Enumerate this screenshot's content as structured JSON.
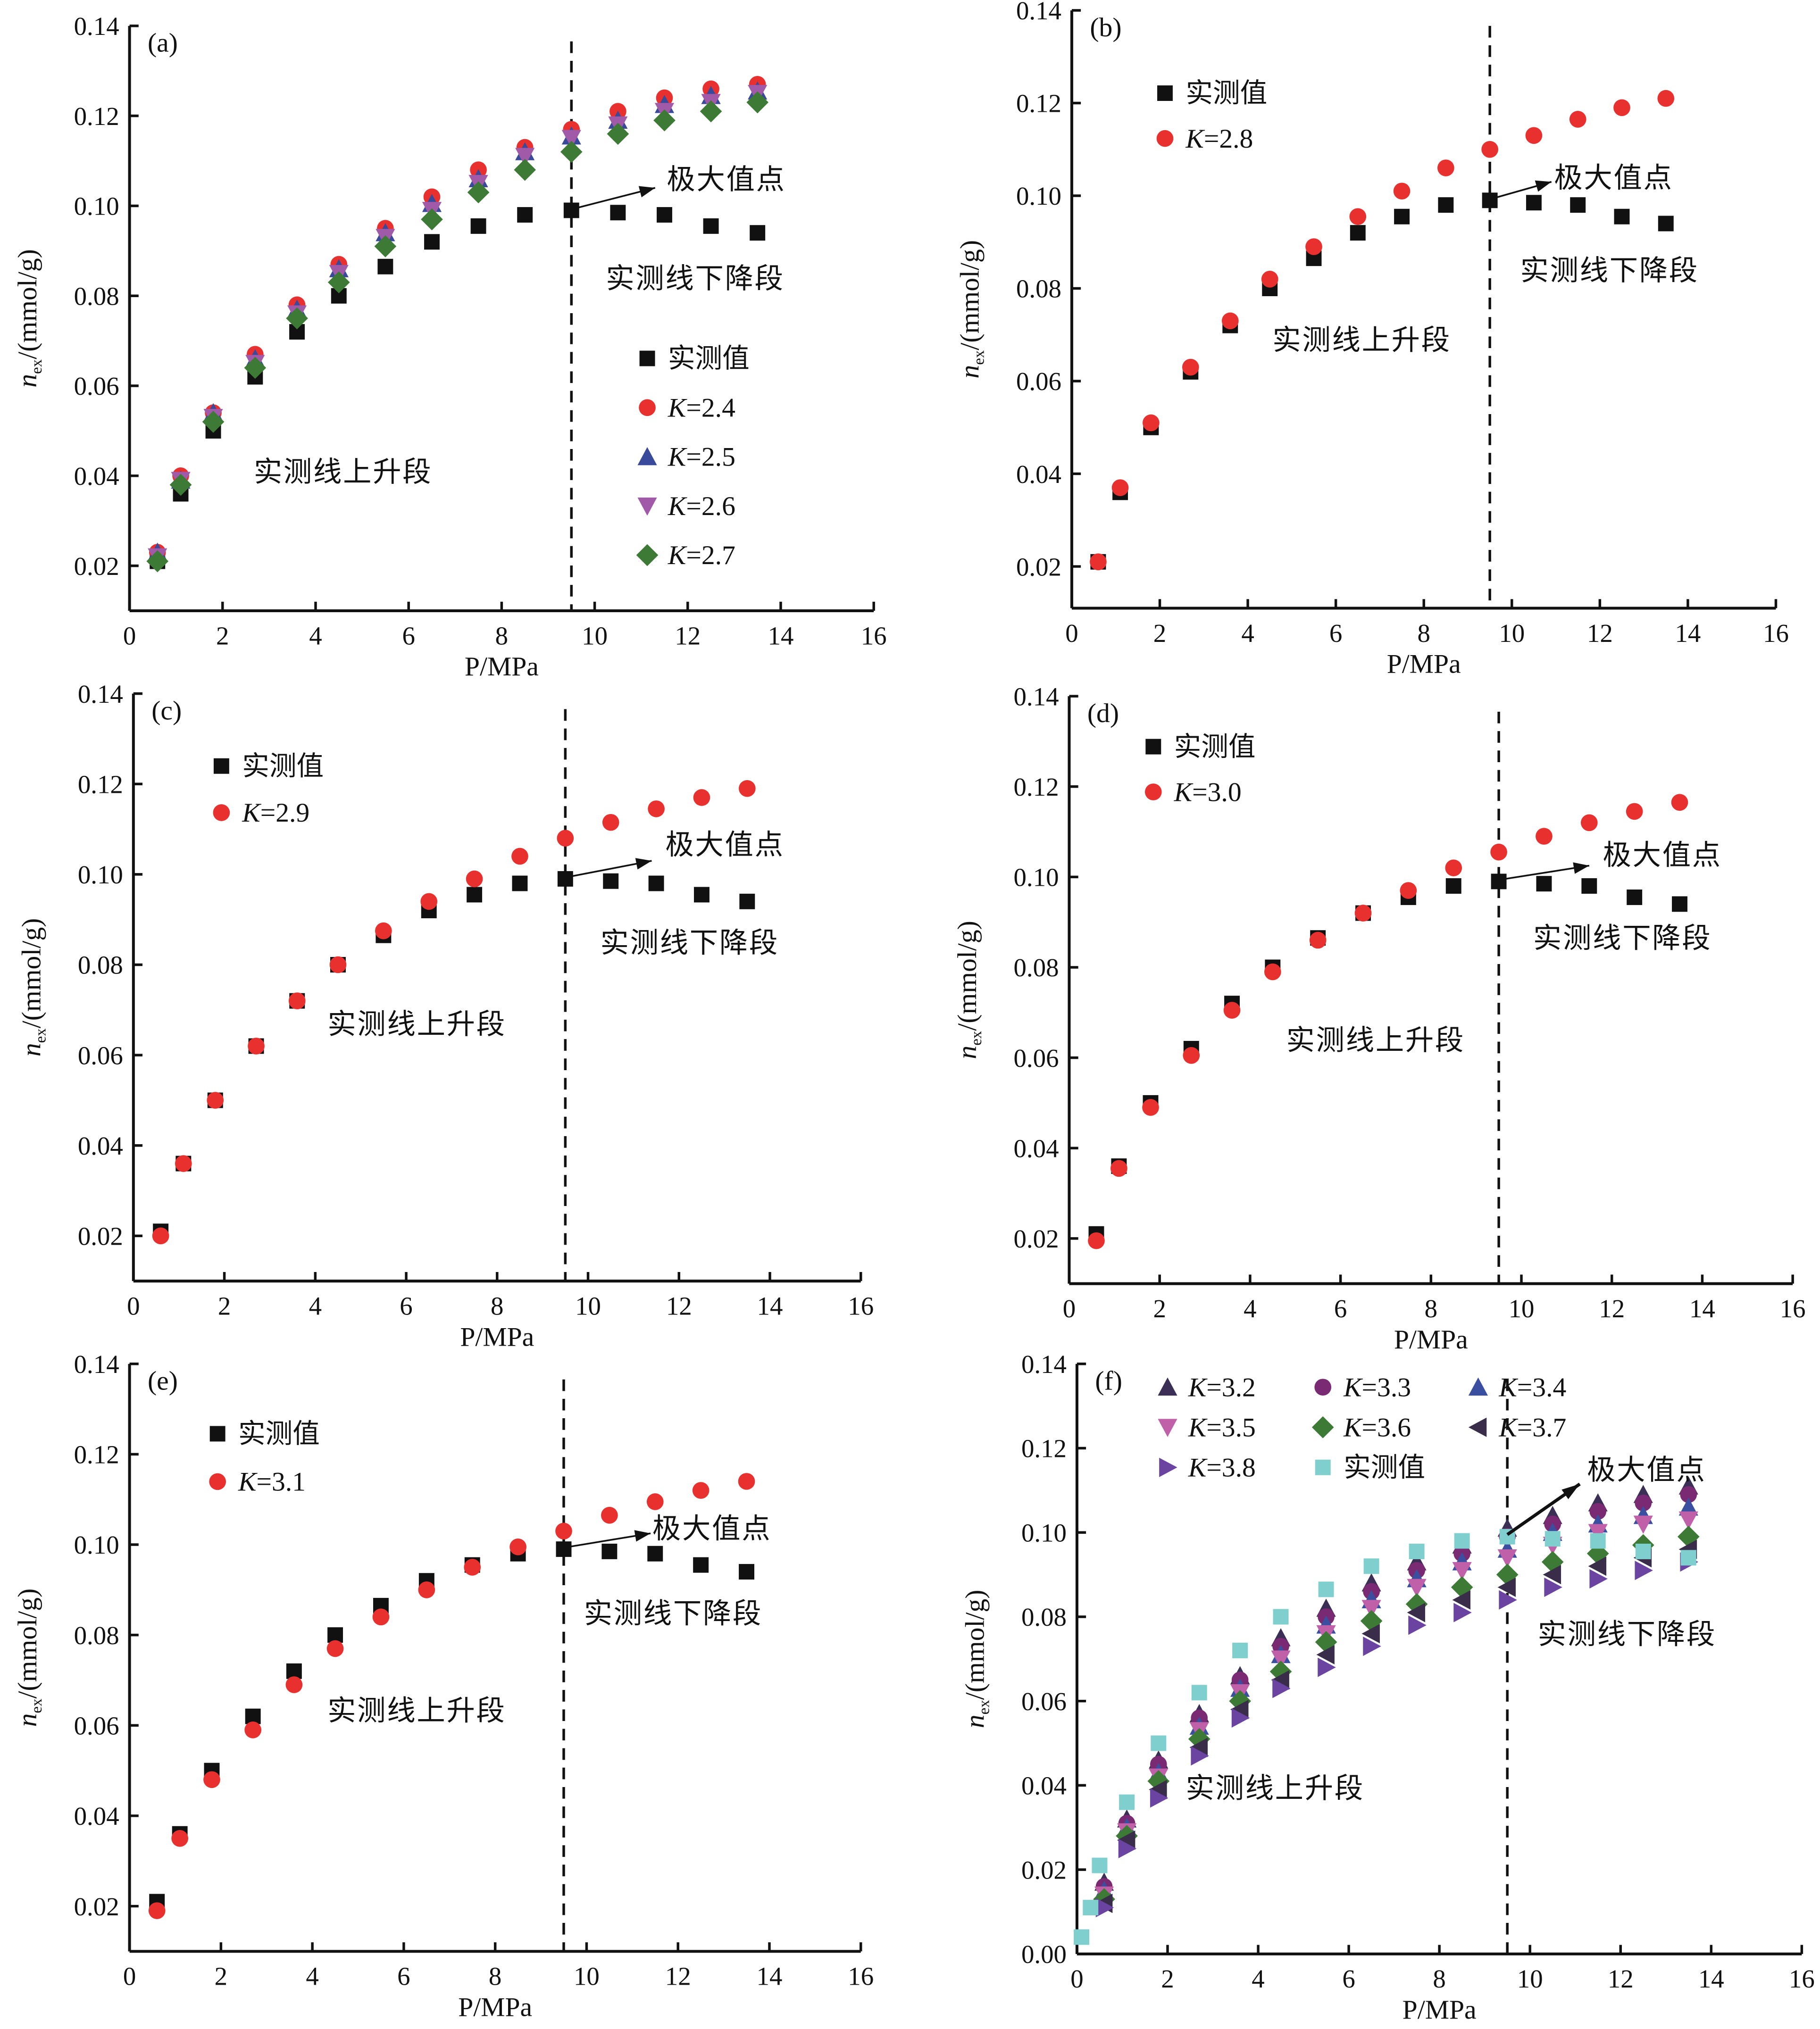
{
  "chart_data": [
    {
      "type": "scatter",
      "panel_label": "(a)",
      "xlabel": "P/MPa",
      "ylabel": "n_ex/(mmol/g)",
      "xlim": [
        0,
        16
      ],
      "ylim": [
        0.01,
        0.14
      ],
      "xticks": [
        0,
        2,
        4,
        6,
        8,
        10,
        12,
        14,
        16
      ],
      "yticks": [
        0.02,
        0.04,
        0.06,
        0.08,
        0.1,
        0.12,
        0.14
      ],
      "vline_x": 9.5,
      "legend_placement": "right",
      "x": [
        0.6,
        1.1,
        1.8,
        2.7,
        3.6,
        4.5,
        5.5,
        6.5,
        7.5,
        8.5,
        9.5,
        10.5,
        11.5,
        12.5,
        13.5
      ],
      "series": [
        {
          "name": "实测值",
          "marker": "square",
          "color": "#111111",
          "values": [
            0.021,
            0.036,
            0.05,
            0.062,
            0.072,
            0.08,
            0.0865,
            0.092,
            0.0955,
            0.098,
            0.099,
            0.0985,
            0.098,
            0.0955,
            0.094
          ]
        },
        {
          "name": "K=2.4",
          "marker": "circle",
          "color": "#e8312f",
          "values": [
            0.023,
            0.04,
            0.054,
            0.067,
            0.078,
            0.087,
            0.095,
            0.102,
            0.108,
            0.113,
            0.117,
            0.121,
            0.124,
            0.126,
            0.127
          ]
        },
        {
          "name": "K=2.5",
          "marker": "triangle-up",
          "color": "#3a4a9a",
          "values": [
            0.023,
            0.039,
            0.054,
            0.066,
            0.077,
            0.086,
            0.094,
            0.1005,
            0.106,
            0.112,
            0.1155,
            0.119,
            0.1225,
            0.1245,
            0.1255
          ]
        },
        {
          "name": "K=2.6",
          "marker": "triangle-down",
          "color": "#a05aa8",
          "values": [
            0.022,
            0.039,
            0.053,
            0.065,
            0.076,
            0.085,
            0.093,
            0.099,
            0.105,
            0.111,
            0.115,
            0.118,
            0.121,
            0.123,
            0.125
          ]
        },
        {
          "name": "K=2.7",
          "marker": "diamond",
          "color": "#3d7a35",
          "values": [
            0.021,
            0.038,
            0.052,
            0.064,
            0.075,
            0.083,
            0.091,
            0.097,
            0.103,
            0.108,
            0.112,
            0.116,
            0.119,
            0.121,
            0.123
          ]
        }
      ],
      "annotations": [
        {
          "text": "极大值点",
          "x": 11.55,
          "y": 0.106,
          "arrow_from": [
            9.6,
            0.0995
          ],
          "arrow_to": [
            11.3,
            0.104
          ]
        },
        {
          "text": "实测线下降段",
          "x": 10.24,
          "y": 0.084
        },
        {
          "text": "实测线上升段",
          "x": 2.67,
          "y": 0.041
        }
      ]
    },
    {
      "type": "scatter",
      "panel_label": "(b)",
      "xlabel": "P/MPa",
      "ylabel": "n_ex/(mmol/g)",
      "xlim": [
        0,
        16
      ],
      "ylim": [
        0.011,
        0.14
      ],
      "xticks": [
        0,
        2,
        4,
        6,
        8,
        10,
        12,
        14,
        16
      ],
      "yticks": [
        0.02,
        0.04,
        0.06,
        0.08,
        0.1,
        0.12,
        0.14
      ],
      "vline_x": 9.5,
      "legend_placement": "top-left",
      "x": [
        0.6,
        1.1,
        1.8,
        2.7,
        3.6,
        4.5,
        5.5,
        6.5,
        7.5,
        8.5,
        9.5,
        10.5,
        11.5,
        12.5,
        13.5
      ],
      "series": [
        {
          "name": "实测值",
          "marker": "square",
          "color": "#111111",
          "values": [
            0.021,
            0.036,
            0.05,
            0.062,
            0.072,
            0.08,
            0.0865,
            0.092,
            0.0955,
            0.098,
            0.099,
            0.0985,
            0.098,
            0.0955,
            0.094
          ]
        },
        {
          "name": "K=2.8",
          "marker": "circle",
          "color": "#e8312f",
          "values": [
            0.021,
            0.037,
            0.051,
            0.063,
            0.073,
            0.082,
            0.089,
            0.0955,
            0.101,
            0.106,
            0.11,
            0.113,
            0.1165,
            0.119,
            0.121
          ]
        }
      ],
      "annotations": [
        {
          "text": "极大值点",
          "x": 10.96,
          "y": 0.104,
          "arrow_from": [
            9.6,
            0.0995
          ],
          "arrow_to": [
            10.9,
            0.103
          ]
        },
        {
          "text": "实测线下降段",
          "x": 10.19,
          "y": 0.084
        },
        {
          "text": "实测线上升段",
          "x": 4.56,
          "y": 0.069
        }
      ]
    },
    {
      "type": "scatter",
      "panel_label": "(c)",
      "xlabel": "P/MPa",
      "ylabel": "n_ex/(mmol/g)",
      "xlim": [
        0,
        16
      ],
      "ylim": [
        0.01,
        0.14
      ],
      "xticks": [
        0,
        2,
        4,
        6,
        8,
        10,
        12,
        14,
        16
      ],
      "yticks": [
        0.02,
        0.04,
        0.06,
        0.08,
        0.1,
        0.12,
        0.14
      ],
      "vline_x": 9.5,
      "legend_placement": "top-left",
      "x": [
        0.6,
        1.1,
        1.8,
        2.7,
        3.6,
        4.5,
        5.5,
        6.5,
        7.5,
        8.5,
        9.5,
        10.5,
        11.5,
        12.5,
        13.5
      ],
      "series": [
        {
          "name": "实测值",
          "marker": "square",
          "color": "#111111",
          "values": [
            0.021,
            0.036,
            0.05,
            0.062,
            0.072,
            0.08,
            0.0865,
            0.092,
            0.0955,
            0.098,
            0.099,
            0.0985,
            0.098,
            0.0955,
            0.094
          ]
        },
        {
          "name": "K=2.9",
          "marker": "circle",
          "color": "#e8312f",
          "values": [
            0.02,
            0.036,
            0.05,
            0.062,
            0.072,
            0.08,
            0.0875,
            0.094,
            0.099,
            0.104,
            0.108,
            0.1115,
            0.1145,
            0.117,
            0.119
          ]
        }
      ],
      "annotations": [
        {
          "text": "极大值点",
          "x": 11.7,
          "y": 0.1067,
          "arrow_from": [
            9.6,
            0.0995
          ],
          "arrow_to": [
            11.4,
            0.103
          ]
        },
        {
          "text": "实测线下降段",
          "x": 10.27,
          "y": 0.085
        },
        {
          "text": "实测线上升段",
          "x": 4.27,
          "y": 0.067
        }
      ]
    },
    {
      "type": "scatter",
      "panel_label": "(d)",
      "xlabel": "P/MPa",
      "ylabel": "n_ex/(mmol/g)",
      "xlim": [
        0,
        16
      ],
      "ylim": [
        0.01,
        0.14
      ],
      "xticks": [
        0,
        2,
        4,
        6,
        8,
        10,
        12,
        14,
        16
      ],
      "yticks": [
        0.02,
        0.04,
        0.06,
        0.08,
        0.1,
        0.12,
        0.14
      ],
      "vline_x": 9.5,
      "legend_placement": "top-left",
      "x": [
        0.6,
        1.1,
        1.8,
        2.7,
        3.6,
        4.5,
        5.5,
        6.5,
        7.5,
        8.5,
        9.5,
        10.5,
        11.5,
        12.5,
        13.5
      ],
      "series": [
        {
          "name": "实测值",
          "marker": "square",
          "color": "#111111",
          "values": [
            0.021,
            0.036,
            0.05,
            0.062,
            0.072,
            0.08,
            0.0865,
            0.092,
            0.0955,
            0.098,
            0.099,
            0.0985,
            0.098,
            0.0955,
            0.094
          ]
        },
        {
          "name": "K=3.0",
          "marker": "circle",
          "color": "#e8312f",
          "values": [
            0.0195,
            0.0355,
            0.049,
            0.0605,
            0.0705,
            0.079,
            0.086,
            0.092,
            0.097,
            0.102,
            0.1055,
            0.109,
            0.112,
            0.1145,
            0.1165
          ]
        }
      ],
      "annotations": [
        {
          "text": "极大值点",
          "x": 11.8,
          "y": 0.105,
          "arrow_from": [
            9.6,
            0.0995
          ],
          "arrow_to": [
            11.5,
            0.1025
          ]
        },
        {
          "text": "实测线下降段",
          "x": 10.26,
          "y": 0.0866
        },
        {
          "text": "实测线上升段",
          "x": 4.8,
          "y": 0.064
        }
      ]
    },
    {
      "type": "scatter",
      "panel_label": "(e)",
      "xlabel": "P/MPa",
      "ylabel": "n_ex/(mmol/g)",
      "xlim": [
        0,
        16
      ],
      "ylim": [
        0.01,
        0.14
      ],
      "xticks": [
        0,
        2,
        4,
        6,
        8,
        10,
        12,
        14,
        16
      ],
      "yticks": [
        0.02,
        0.04,
        0.06,
        0.08,
        0.1,
        0.12,
        0.14
      ],
      "vline_x": 9.5,
      "legend_placement": "top-left",
      "x": [
        0.6,
        1.1,
        1.8,
        2.7,
        3.6,
        4.5,
        5.5,
        6.5,
        7.5,
        8.5,
        9.5,
        10.5,
        11.5,
        12.5,
        13.5
      ],
      "series": [
        {
          "name": "实测值",
          "marker": "square",
          "color": "#111111",
          "values": [
            0.021,
            0.036,
            0.05,
            0.062,
            0.072,
            0.08,
            0.0865,
            0.092,
            0.0955,
            0.098,
            0.099,
            0.0985,
            0.098,
            0.0955,
            0.094
          ]
        },
        {
          "name": "K=3.1",
          "marker": "circle",
          "color": "#e8312f",
          "values": [
            0.019,
            0.035,
            0.048,
            0.059,
            0.069,
            0.077,
            0.084,
            0.09,
            0.095,
            0.0995,
            0.103,
            0.1065,
            0.1095,
            0.112,
            0.114
          ]
        }
      ],
      "annotations": [
        {
          "text": "极大值点",
          "x": 11.44,
          "y": 0.1037,
          "arrow_from": [
            9.6,
            0.0995
          ],
          "arrow_to": [
            11.4,
            0.1025
          ]
        },
        {
          "text": "实测线下降段",
          "x": 9.94,
          "y": 0.0849
        },
        {
          "text": "实测线上升段",
          "x": 4.33,
          "y": 0.0634
        }
      ]
    },
    {
      "type": "scatter",
      "panel_label": "(f)",
      "xlabel": "P/MPa",
      "ylabel": "n_ex/(mmol/g)",
      "xlim": [
        0,
        16
      ],
      "ylim": [
        0,
        0.14
      ],
      "xticks": [
        0,
        2,
        4,
        6,
        8,
        10,
        12,
        14,
        16
      ],
      "yticks": [
        0.0,
        0.02,
        0.04,
        0.06,
        0.08,
        0.1,
        0.12,
        0.14
      ],
      "vline_x": 9.5,
      "legend_placement": "top",
      "x": [
        0.6,
        1.1,
        1.8,
        2.7,
        3.6,
        4.5,
        5.5,
        6.5,
        7.5,
        8.5,
        9.5,
        10.5,
        11.5,
        12.5,
        13.5
      ],
      "series": [
        {
          "name": "K=3.2",
          "marker": "triangle-up",
          "color": "#3c2f55",
          "values": [
            0.017,
            0.032,
            0.046,
            0.057,
            0.066,
            0.075,
            0.082,
            0.088,
            0.093,
            0.097,
            0.101,
            0.104,
            0.107,
            0.109,
            0.111
          ]
        },
        {
          "name": "K=3.3",
          "marker": "circle",
          "color": "#7a2a72",
          "values": [
            0.016,
            0.031,
            0.045,
            0.056,
            0.065,
            0.073,
            0.08,
            0.086,
            0.091,
            0.095,
            0.099,
            0.102,
            0.105,
            0.107,
            0.109
          ]
        },
        {
          "name": "K=3.4",
          "marker": "triangle-up",
          "color": "#3b4fa0",
          "values": [
            0.015,
            0.03,
            0.043,
            0.054,
            0.063,
            0.071,
            0.078,
            0.084,
            0.089,
            0.093,
            0.096,
            0.1,
            0.102,
            0.104,
            0.106
          ]
        },
        {
          "name": "K=3.5",
          "marker": "triangle-down",
          "color": "#c060a8",
          "values": [
            0.014,
            0.029,
            0.042,
            0.053,
            0.062,
            0.07,
            0.076,
            0.082,
            0.087,
            0.091,
            0.094,
            0.097,
            0.1,
            0.102,
            0.103
          ]
        },
        {
          "name": "K=3.6",
          "marker": "diamond",
          "color": "#3d7a35",
          "values": [
            0.013,
            0.028,
            0.041,
            0.051,
            0.06,
            0.067,
            0.074,
            0.079,
            0.083,
            0.087,
            0.09,
            0.093,
            0.095,
            0.097,
            0.099
          ]
        },
        {
          "name": "K=3.7",
          "marker": "triangle-left",
          "color": "#3a2d4a",
          "values": [
            0.012,
            0.027,
            0.039,
            0.049,
            0.058,
            0.065,
            0.071,
            0.076,
            0.081,
            0.084,
            0.087,
            0.09,
            0.092,
            0.094,
            0.096
          ]
        },
        {
          "name": "K=3.8",
          "marker": "triangle-right",
          "color": "#6a44a0",
          "values": [
            0.011,
            0.025,
            0.037,
            0.047,
            0.056,
            0.063,
            0.068,
            0.073,
            0.078,
            0.081,
            0.084,
            0.087,
            0.089,
            0.091,
            0.093
          ]
        },
        {
          "name": "实测值",
          "marker": "square",
          "color": "#7fcfcf",
          "x": [
            0.1,
            0.3,
            0.5,
            1.1,
            1.8,
            2.7,
            3.6,
            4.5,
            5.5,
            6.5,
            7.5,
            8.5,
            9.5,
            10.5,
            11.5,
            12.5,
            13.5
          ],
          "values": [
            0.004,
            0.011,
            0.021,
            0.036,
            0.05,
            0.062,
            0.072,
            0.08,
            0.0865,
            0.092,
            0.0955,
            0.098,
            0.099,
            0.0985,
            0.098,
            0.0955,
            0.094
          ]
        }
      ],
      "annotations": [
        {
          "text": "极大值点",
          "x": 11.26,
          "y": 0.115,
          "arrow_from": [
            9.5,
            0.0995
          ],
          "arrow_to": [
            11.1,
            0.1115
          ]
        },
        {
          "text": "实测线下降段",
          "x": 10.17,
          "y": 0.076
        },
        {
          "text": "实测线上升段",
          "x": 2.4,
          "y": 0.0395
        }
      ]
    }
  ]
}
